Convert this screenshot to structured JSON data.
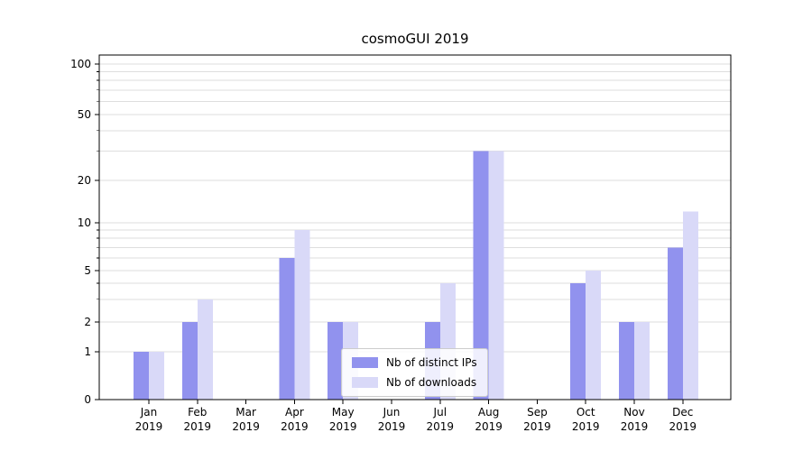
{
  "chart_data": {
    "type": "bar",
    "title": "cosmoGUI 2019",
    "categories": [
      "Jan",
      "Feb",
      "Mar",
      "Apr",
      "May",
      "Jun",
      "Jul",
      "Aug",
      "Sep",
      "Oct",
      "Nov",
      "Dec"
    ],
    "category_sublabel": "2019",
    "series": [
      {
        "name": "Nb of distinct IPs",
        "color": "#9192ee",
        "values": [
          1,
          2,
          0,
          6,
          2,
          0,
          2,
          30,
          0,
          4,
          2,
          7
        ]
      },
      {
        "name": "Nb of downloads",
        "color": "#d9d9f8",
        "values": [
          1,
          3,
          0,
          9,
          2,
          0,
          4,
          30,
          0,
          5,
          2,
          12
        ]
      }
    ],
    "y_axis": {
      "scale": "symlog",
      "ticks": [
        0,
        1,
        2,
        5,
        10,
        20,
        50,
        100
      ]
    },
    "grid": {
      "horizontal": true,
      "minor_log_lines": true
    },
    "legend": {
      "position": "lower center"
    }
  },
  "colors": {
    "grid": "#dedede",
    "axis": "#000000",
    "background": "#ffffff",
    "legend_border": "#cccccc"
  }
}
